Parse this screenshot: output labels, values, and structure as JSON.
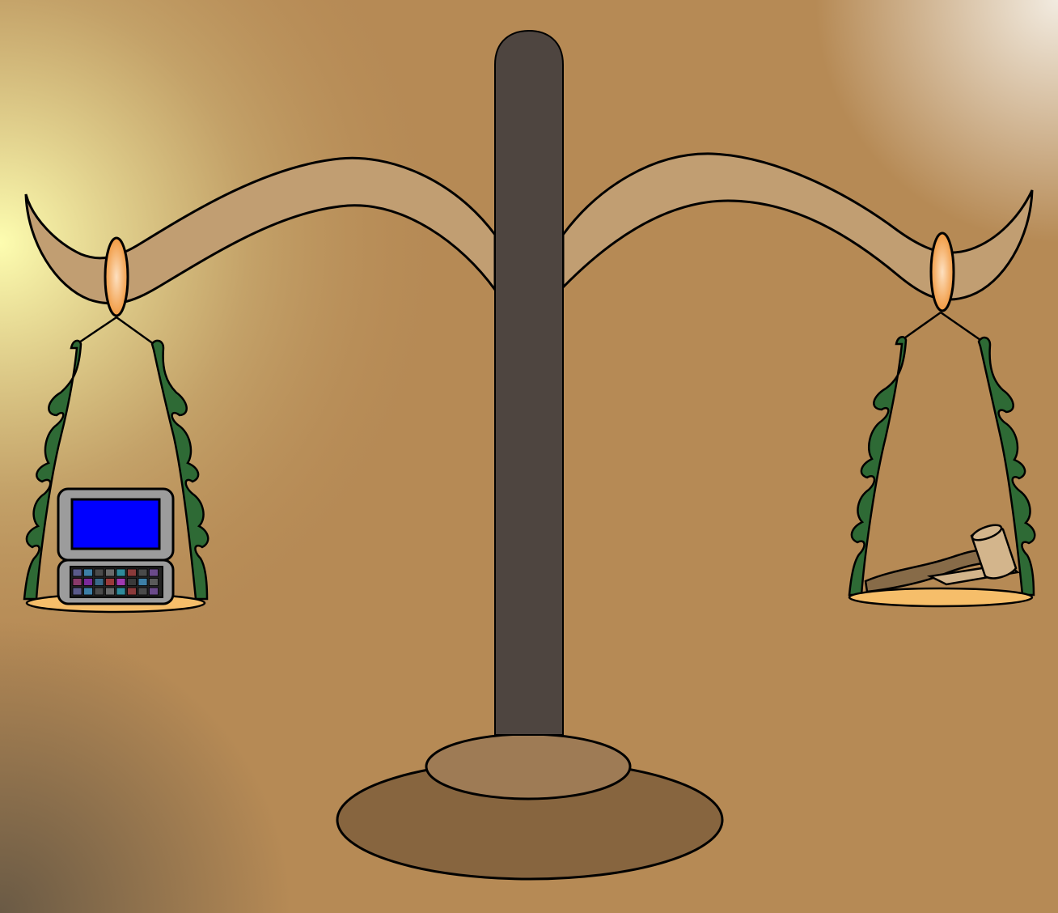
{
  "scene": {
    "subject": "balance scale",
    "colors": {
      "background_glow": "#fdfdb0",
      "background_mid": "#c6a66c",
      "background_main": "#b68a55",
      "background_corner_light": "#f2ebe0",
      "background_corner_dark": "#6a5a45",
      "pillar": "#4e4540",
      "beam": "#c19e72",
      "base_bottom": "#87653f",
      "base_top": "#9e7b55",
      "ring_outer": "#f19a42",
      "ring_inner": "#fde0c0",
      "chain": "#2e6a35",
      "pan": "#f6be6a",
      "pda_body": "#9c9c9c",
      "pda_screen": "#0000ff",
      "gavel_wood": "#876b48",
      "gavel_head": "#d3b58c",
      "outline": "#000000"
    },
    "left_pan": {
      "item": "pda-device",
      "icon": "pda-icon"
    },
    "right_pan": {
      "item": "judge-gavel",
      "icon": "gavel-icon"
    },
    "keypad_colors": [
      "#5a5a8a",
      "#3d7fa6",
      "#4a4a4a",
      "#6a6a6a",
      "#2f8a9a",
      "#8a3a3a",
      "#4a4a4a",
      "#6a4a8a",
      "#8a3a6a",
      "#7a2a9a",
      "#3a6a8a",
      "#9a3a3a",
      "#a03ab0",
      "#3a3a3a",
      "#3d7fa6",
      "#5a5a5a"
    ]
  }
}
